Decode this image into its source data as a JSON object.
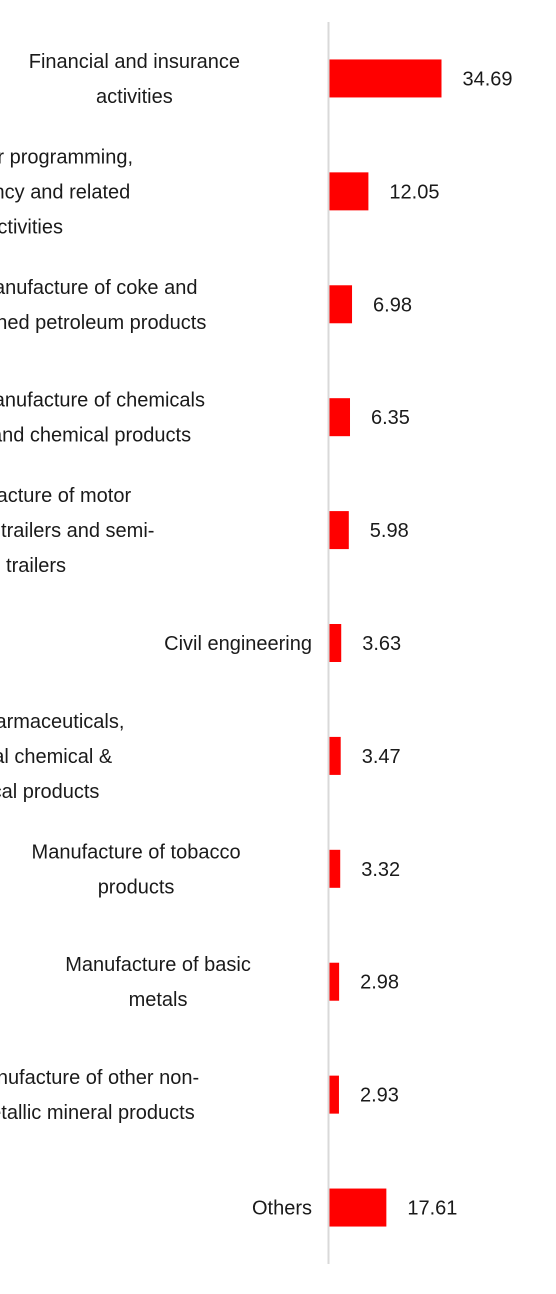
{
  "chart_data": {
    "type": "bar",
    "orientation": "horizontal",
    "categories": [
      [
        "Financial and insurance",
        "activities"
      ],
      [
        "Computer programming,",
        "consultancy and related",
        "activities"
      ],
      [
        "Manufacture of coke and",
        "refined petroleum products"
      ],
      [
        "Manufacture of chemicals",
        "and chemical products"
      ],
      [
        "Manufacture of motor",
        "vehicles, trailers and semi-",
        "trailers"
      ],
      [
        "Civil engineering"
      ],
      [
        "Mfg of pharmaceuticals,",
        "medicinal chemical &",
        "botanical products"
      ],
      [
        "Manufacture of tobacco",
        "products"
      ],
      [
        "Manufacture of basic",
        "metals"
      ],
      [
        "Manufacture of other non-",
        "metallic mineral products"
      ],
      [
        "Others"
      ]
    ],
    "values": [
      34.69,
      12.05,
      6.98,
      6.35,
      5.98,
      3.63,
      3.47,
      3.32,
      2.98,
      2.93,
      17.61
    ],
    "value_labels": [
      "34.69",
      "12.05",
      "6.98",
      "6.35",
      "5.98",
      "3.63",
      "3.47",
      "3.32",
      "2.98",
      "2.93",
      "17.61"
    ],
    "title": "",
    "xlabel": "",
    "ylabel": "",
    "grid": false,
    "legend": "none",
    "bar_color": "#ff0000",
    "axis_color": "#d9d9d9",
    "text_color": "#1a1a1a"
  }
}
